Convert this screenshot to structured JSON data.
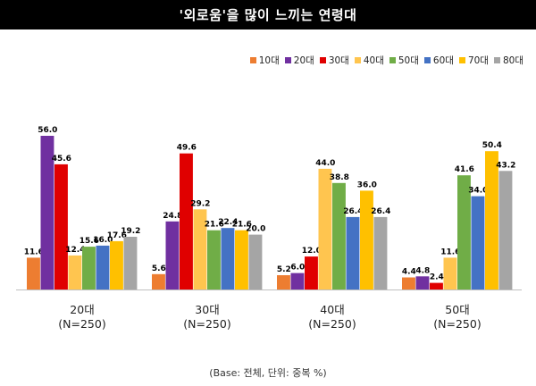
{
  "title": "'외로움'을 많이 느끼는 연령대",
  "footnote": "(Base: 전체, 단위: 중복 %)",
  "chart_data": {
    "type": "bar",
    "categories": [
      "20대",
      "30대",
      "40대",
      "50대"
    ],
    "category_sublabel": "(N=250)",
    "series": [
      {
        "name": "10대",
        "color": "#ED7D31",
        "values": [
          11.6,
          5.6,
          5.2,
          4.4
        ]
      },
      {
        "name": "20대",
        "color": "#7030A0",
        "values": [
          56.0,
          24.8,
          6.0,
          4.8
        ]
      },
      {
        "name": "30대",
        "color": "#E00000",
        "values": [
          45.6,
          49.6,
          12.0,
          2.4
        ]
      },
      {
        "name": "40대",
        "color": "#FFC54F",
        "values": [
          12.4,
          29.2,
          44.0,
          11.6
        ]
      },
      {
        "name": "50대",
        "color": "#70AD47",
        "values": [
          15.6,
          21.6,
          38.8,
          41.6
        ]
      },
      {
        "name": "60대",
        "color": "#4472C4",
        "values": [
          16.0,
          22.4,
          26.4,
          34.0
        ]
      },
      {
        "name": "70대",
        "color": "#FFC000",
        "values": [
          17.6,
          21.6,
          36.0,
          50.4
        ]
      },
      {
        "name": "80대",
        "color": "#A5A5A5",
        "values": [
          19.2,
          20.0,
          26.4,
          43.2
        ]
      }
    ],
    "value_labels": [
      [
        "11.6",
        "5.6",
        "5.2",
        "4.4"
      ],
      [
        "56.0",
        "24.8",
        "6.0",
        "4.8"
      ],
      [
        "45.6",
        "49.6",
        "12.0",
        "2.4"
      ],
      [
        "12.4",
        "29.2",
        "44.0",
        "11.6"
      ],
      [
        "15.6",
        "21.6",
        "38.8",
        "41.6"
      ],
      [
        "16.0",
        "22.4",
        "26.4",
        "34.0"
      ],
      [
        "17.6",
        "21.6",
        "36.0",
        "50.4"
      ],
      [
        "19.2",
        "20.0",
        "26.4",
        "43.2"
      ]
    ],
    "ylim": [
      0,
      60
    ],
    "legend_position": "top-right",
    "grid": false
  }
}
